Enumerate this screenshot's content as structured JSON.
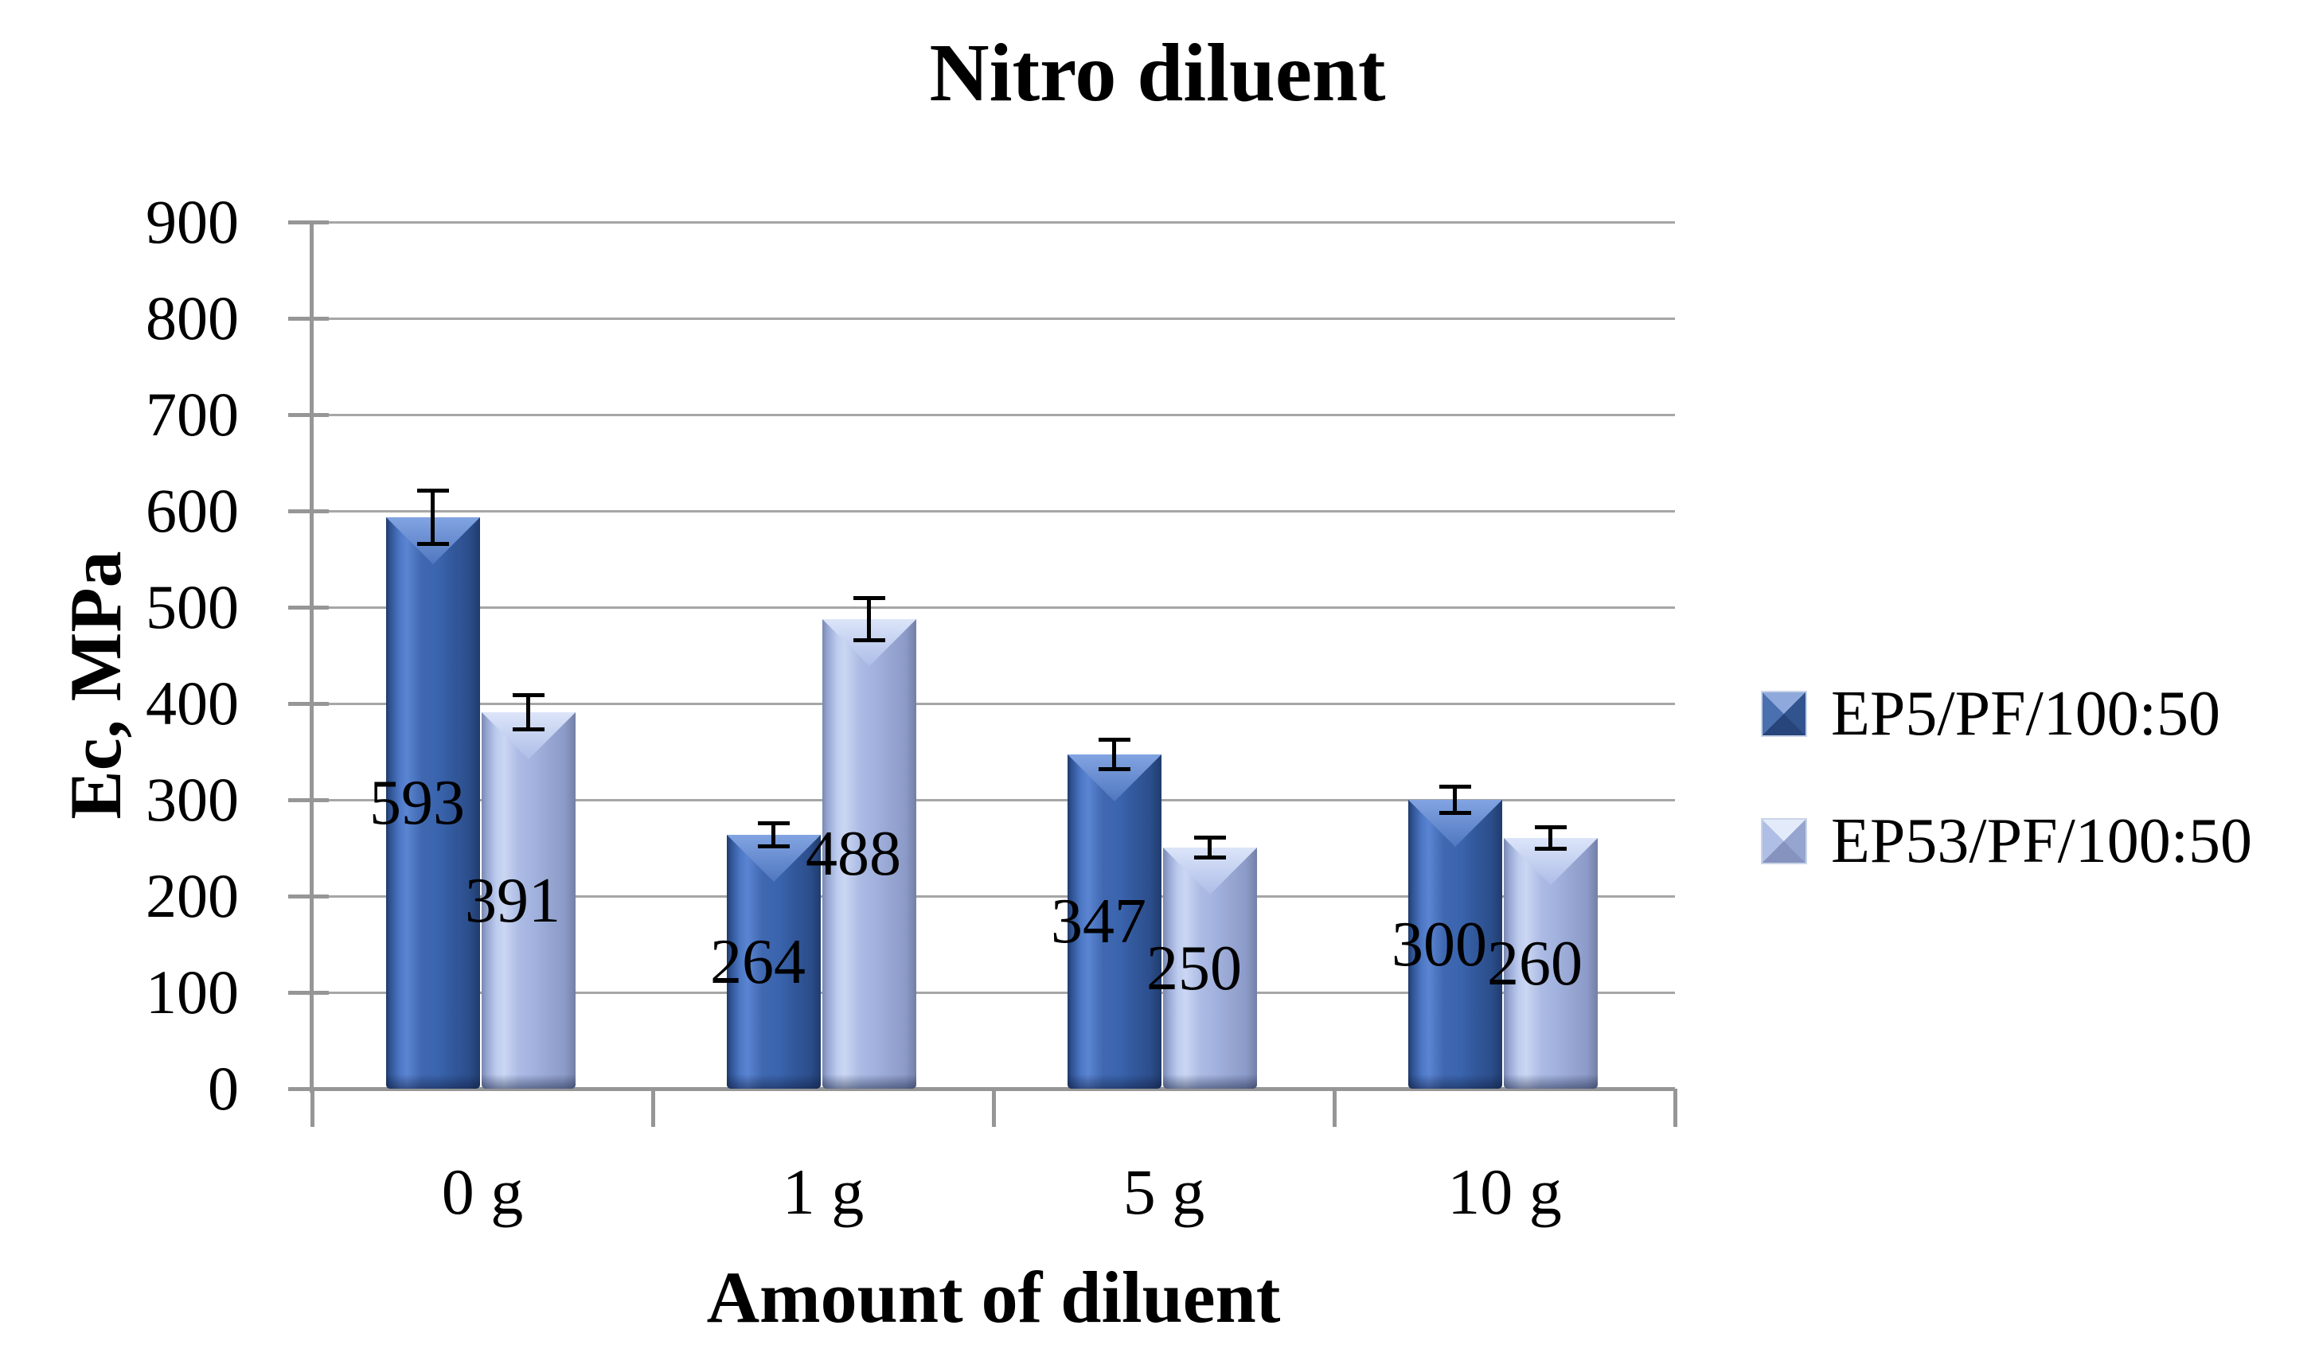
{
  "chart_data": {
    "type": "bar",
    "title": "Nitro diluent",
    "xlabel": "Amount of diluent",
    "ylabel": "Ec, MPa",
    "categories": [
      "0 g",
      "1 g",
      "5 g",
      "10 g"
    ],
    "series": [
      {
        "name": "EP5/PF/100:50",
        "values": [
          593,
          264,
          347,
          300
        ],
        "errors": [
          30,
          14,
          17,
          16
        ],
        "data_labels": [
          "593",
          "264",
          "347",
          "300"
        ],
        "color": "#3A65AE"
      },
      {
        "name": "EP53/PF/100:50",
        "values": [
          391,
          488,
          250,
          260
        ],
        "errors": [
          20,
          24,
          12,
          13
        ],
        "data_labels": [
          "391",
          "488",
          "250",
          "260"
        ],
        "color": "#A2B2DE"
      }
    ],
    "ylim": [
      0,
      900
    ],
    "ytick_interval": 100,
    "yticks": [
      "0",
      "100",
      "200",
      "300",
      "400",
      "500",
      "600",
      "700",
      "800",
      "900"
    ],
    "grid": true,
    "legend_position": "right",
    "data_label_position": "center",
    "error_bars": true,
    "bar_style": "3d-triangular-prism"
  },
  "colors": {
    "series1_fill": "#3A65AE",
    "series1_highlight": "#5B85D2",
    "series1_shadow": "#1F3A69",
    "series1_top_face": "#6F94D8",
    "series2_fill": "#A2B2DE",
    "series2_highlight": "#CAD6F2",
    "series2_shadow": "#737FA5",
    "series2_top_face": "#CFDBF6",
    "gridline": "#A6A6A6",
    "axis_line": "#969696",
    "error_bar": "#000000",
    "text": "#000000",
    "background": "#FFFFFF"
  }
}
